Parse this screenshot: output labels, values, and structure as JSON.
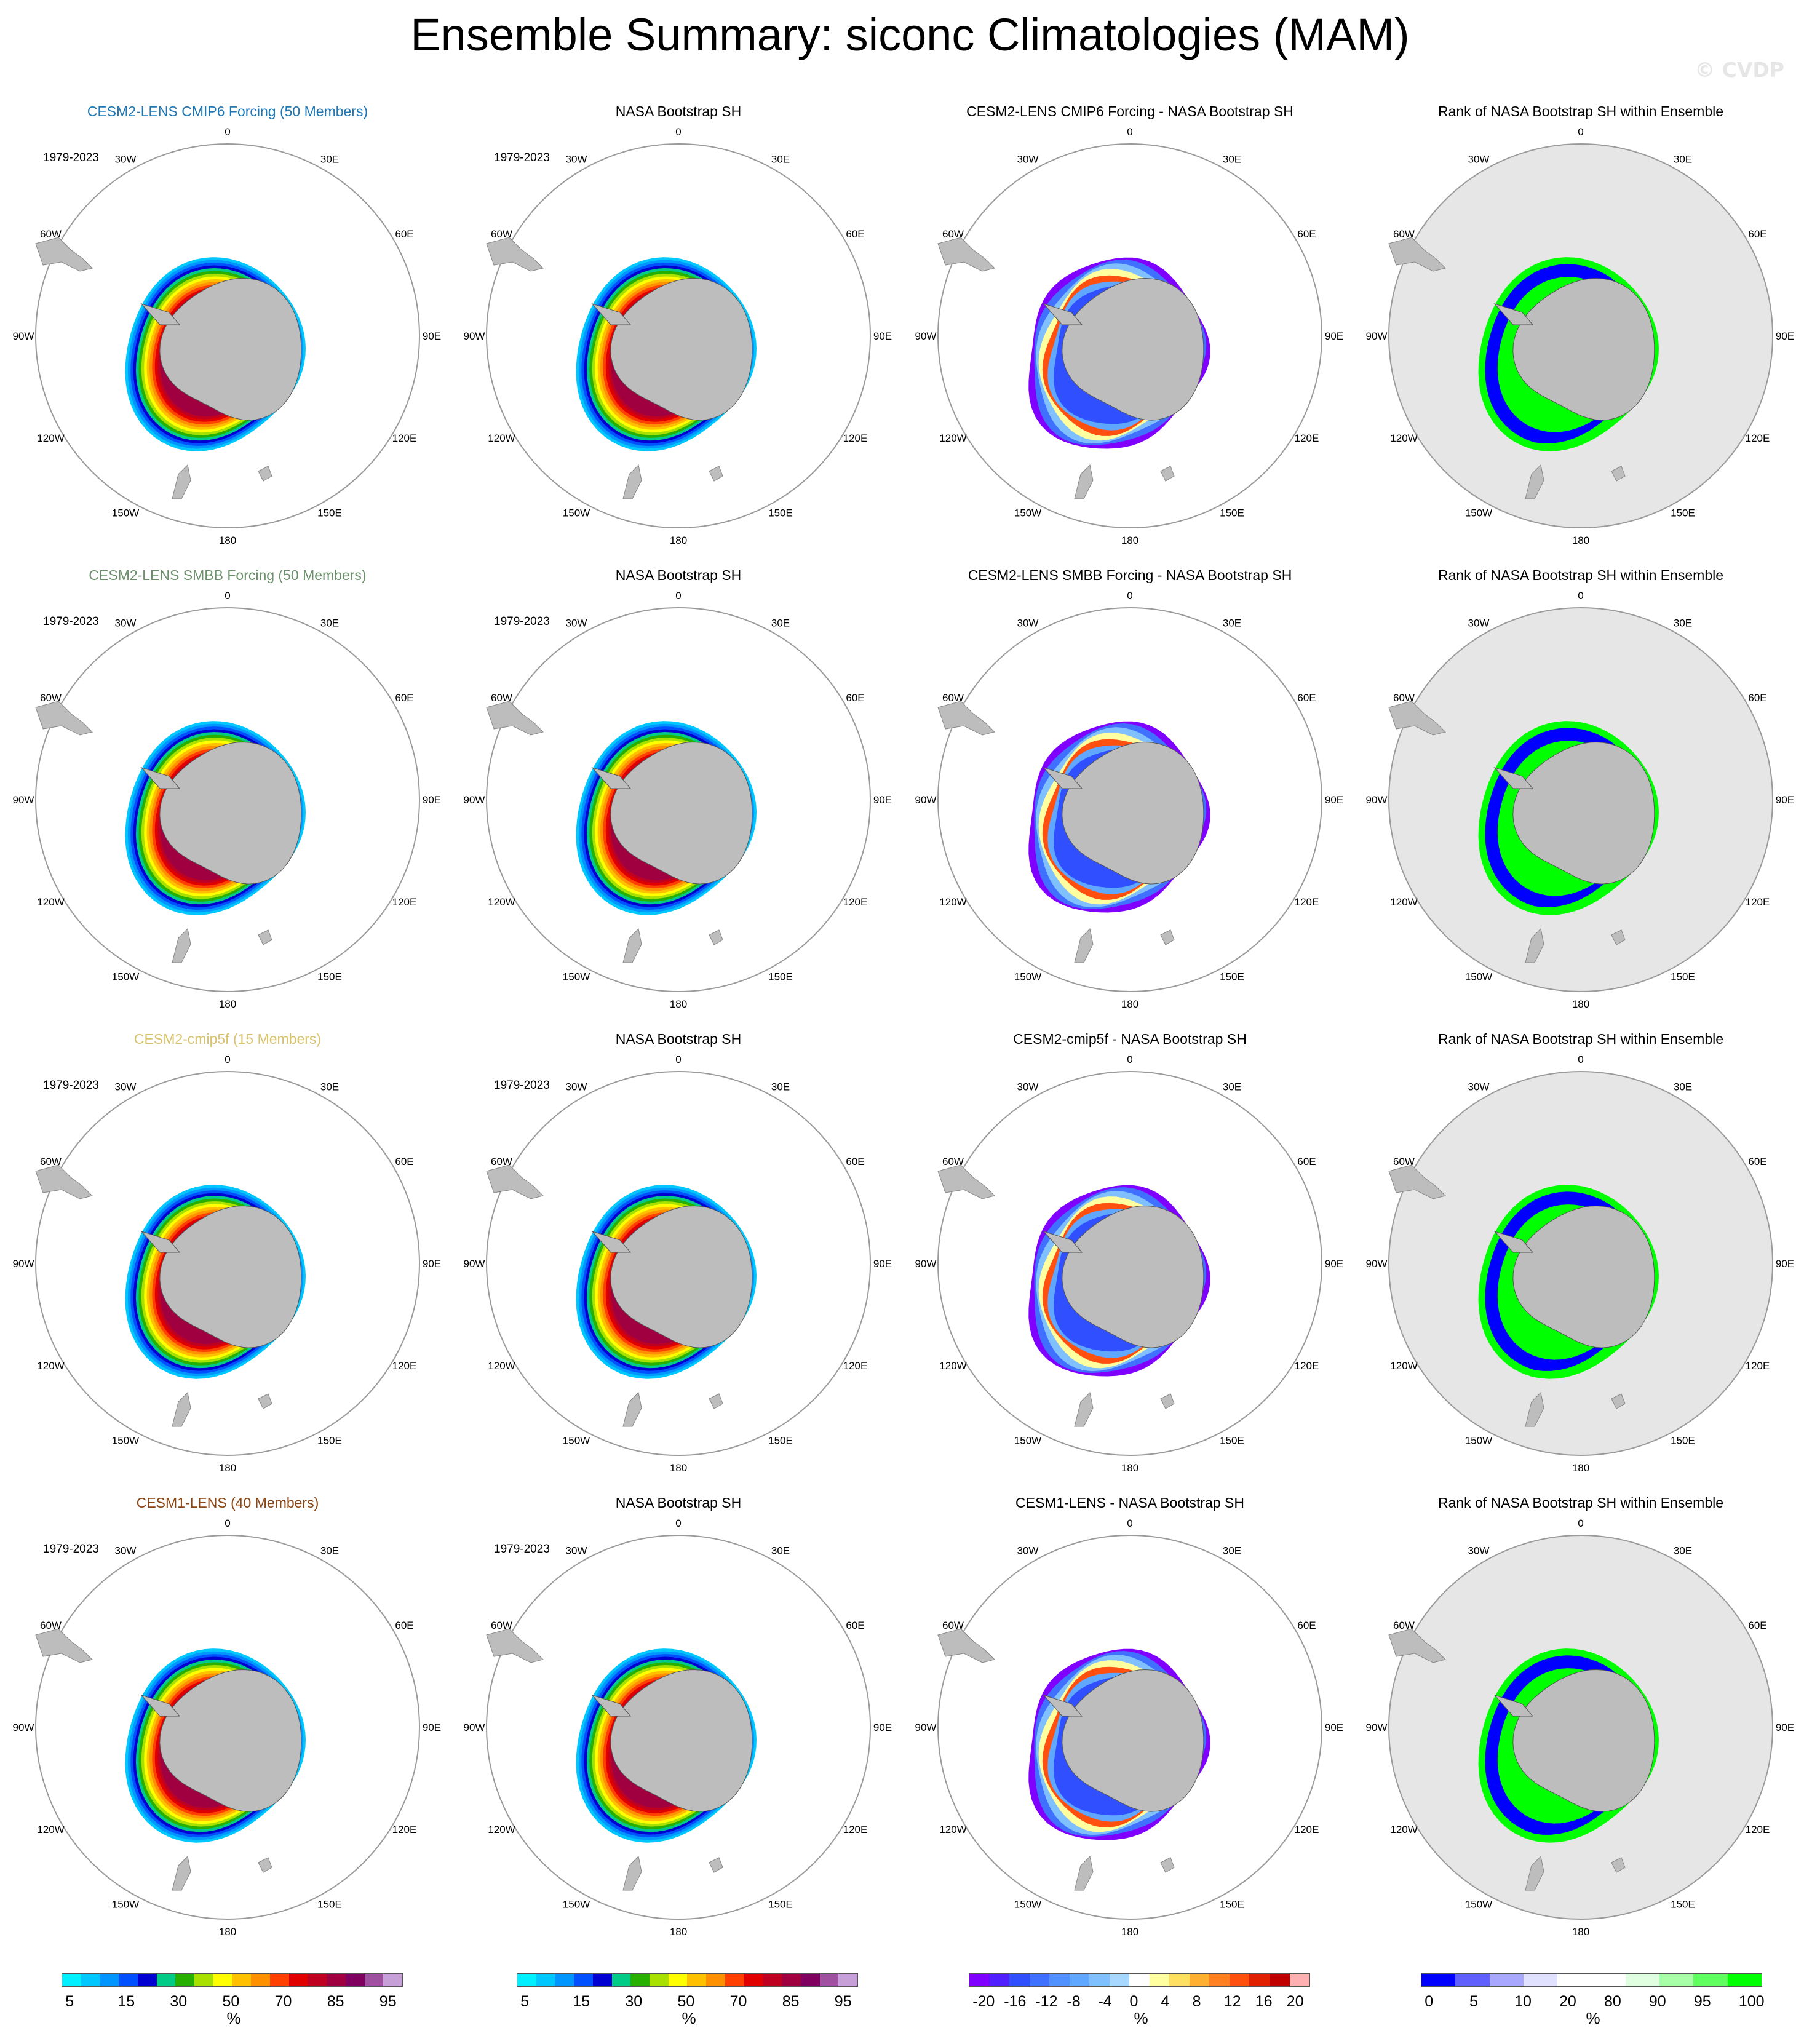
{
  "title": "Ensemble Summary: siconc Climatologies (MAM)",
  "credit": "© CVDP",
  "period": "1979-2023",
  "meridian_labels": [
    "0",
    "30E",
    "60E",
    "90E",
    "120E",
    "150E",
    "180",
    "150W",
    "120W",
    "90W",
    "60W",
    "30W"
  ],
  "rows": [
    {
      "model": "CESM2-LENS CMIP6 Forcing (50 Members)",
      "model_color": "#1f77b4",
      "obs": "NASA Bootstrap SH",
      "diff": "CESM2-LENS CMIP6 Forcing - NASA Bootstrap SH",
      "rank": "Rank of NASA Bootstrap SH within Ensemble"
    },
    {
      "model": "CESM2-LENS SMBB Forcing (50 Members)",
      "model_color": "#6b8f6b",
      "obs": "NASA Bootstrap SH",
      "diff": "CESM2-LENS SMBB Forcing - NASA Bootstrap SH",
      "rank": "Rank of NASA Bootstrap SH within Ensemble"
    },
    {
      "model": "CESM2-cmip5f (15 Members)",
      "model_color": "#d9c26e",
      "obs": "NASA Bootstrap SH",
      "diff": "CESM2-cmip5f - NASA Bootstrap SH",
      "rank": "Rank of NASA Bootstrap SH within Ensemble"
    },
    {
      "model": "CESM1-LENS (40 Members)",
      "model_color": "#8b4513",
      "obs": "NASA Bootstrap SH",
      "diff": "CESM1-LENS - NASA Bootstrap SH",
      "rank": "Rank of NASA Bootstrap SH within Ensemble"
    }
  ],
  "colorbars": {
    "concentration": {
      "colors": [
        "#00f0ff",
        "#00c8ff",
        "#0096ff",
        "#0050ff",
        "#0000d0",
        "#00cc88",
        "#28b000",
        "#a8e000",
        "#ffff00",
        "#ffc000",
        "#ff9000",
        "#ff4000",
        "#e00000",
        "#c00020",
        "#a00040",
        "#800060",
        "#a050a0",
        "#c8a0d8"
      ],
      "labels": [
        "5",
        "15",
        "30",
        "50",
        "70",
        "85",
        "95"
      ],
      "unit": "%"
    },
    "difference": {
      "colors": [
        "#8000ff",
        "#5020ff",
        "#3050ff",
        "#4070ff",
        "#5090ff",
        "#60a8ff",
        "#80c0ff",
        "#a8d8ff",
        "#ffffff",
        "#ffffa0",
        "#ffe060",
        "#ffb030",
        "#ff8020",
        "#ff5010",
        "#e02000",
        "#c00000",
        "#ffb0b0"
      ],
      "labels": [
        "-20",
        "-16",
        "-12",
        "-8",
        "-4",
        "0",
        "4",
        "8",
        "12",
        "16",
        "20"
      ],
      "unit": "%"
    },
    "rank": {
      "colors": [
        "#0000ff",
        "#6060ff",
        "#a8a8ff",
        "#e0e0ff",
        "#ffffff",
        "#ffffff",
        "#e0ffe0",
        "#a8ffa8",
        "#60ff60",
        "#00ff00"
      ],
      "labels": [
        "0",
        "5",
        "10",
        "20",
        "80",
        "90",
        "95",
        "100"
      ],
      "unit": "%"
    }
  }
}
